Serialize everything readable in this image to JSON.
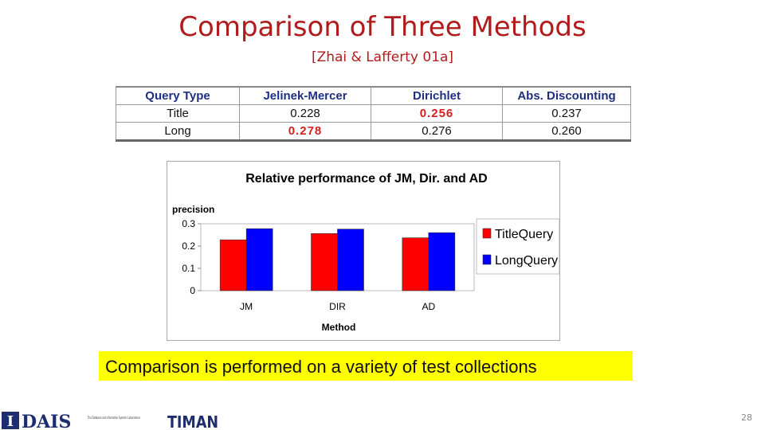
{
  "slide": {
    "title": "Comparison of Three Methods",
    "subtitle": "[Zhai & Lafferty 01a]",
    "caption": "Comparison is performed on a variety of test collections",
    "slide_number": "28"
  },
  "table": {
    "headers": [
      "Query Type",
      "Jelinek-Mercer",
      "Dirichlet",
      "Abs. Discounting"
    ],
    "rows": [
      [
        "Title",
        "0.228",
        "0.256",
        "0.237"
      ],
      [
        "Long",
        "0.278",
        "0.276",
        "0.260"
      ]
    ]
  },
  "logos": {
    "dais_text": "DAIS",
    "dais_lab": "The Database and Information Systems Laboratories",
    "timan_text": "TIMAN"
  },
  "colors": {
    "title": "#b01c1c",
    "title_query": "#ff0000",
    "long_query": "#0000ff",
    "highlight": "#ffff00"
  },
  "chart_data": {
    "type": "bar",
    "title": "Relative performance of JM, Dir. and AD",
    "xlabel": "Method",
    "ylabel": "precision",
    "categories": [
      "JM",
      "DIR",
      "AD"
    ],
    "series": [
      {
        "name": "TitleQuery",
        "color": "#ff0000",
        "values": [
          0.228,
          0.256,
          0.237
        ]
      },
      {
        "name": "LongQuery",
        "color": "#0000ff",
        "values": [
          0.278,
          0.276,
          0.26
        ]
      }
    ],
    "ylim": [
      0,
      0.3
    ],
    "yticks": [
      "0",
      "0.1",
      "0.2",
      "0.3"
    ],
    "grid": false,
    "legend": "right"
  }
}
